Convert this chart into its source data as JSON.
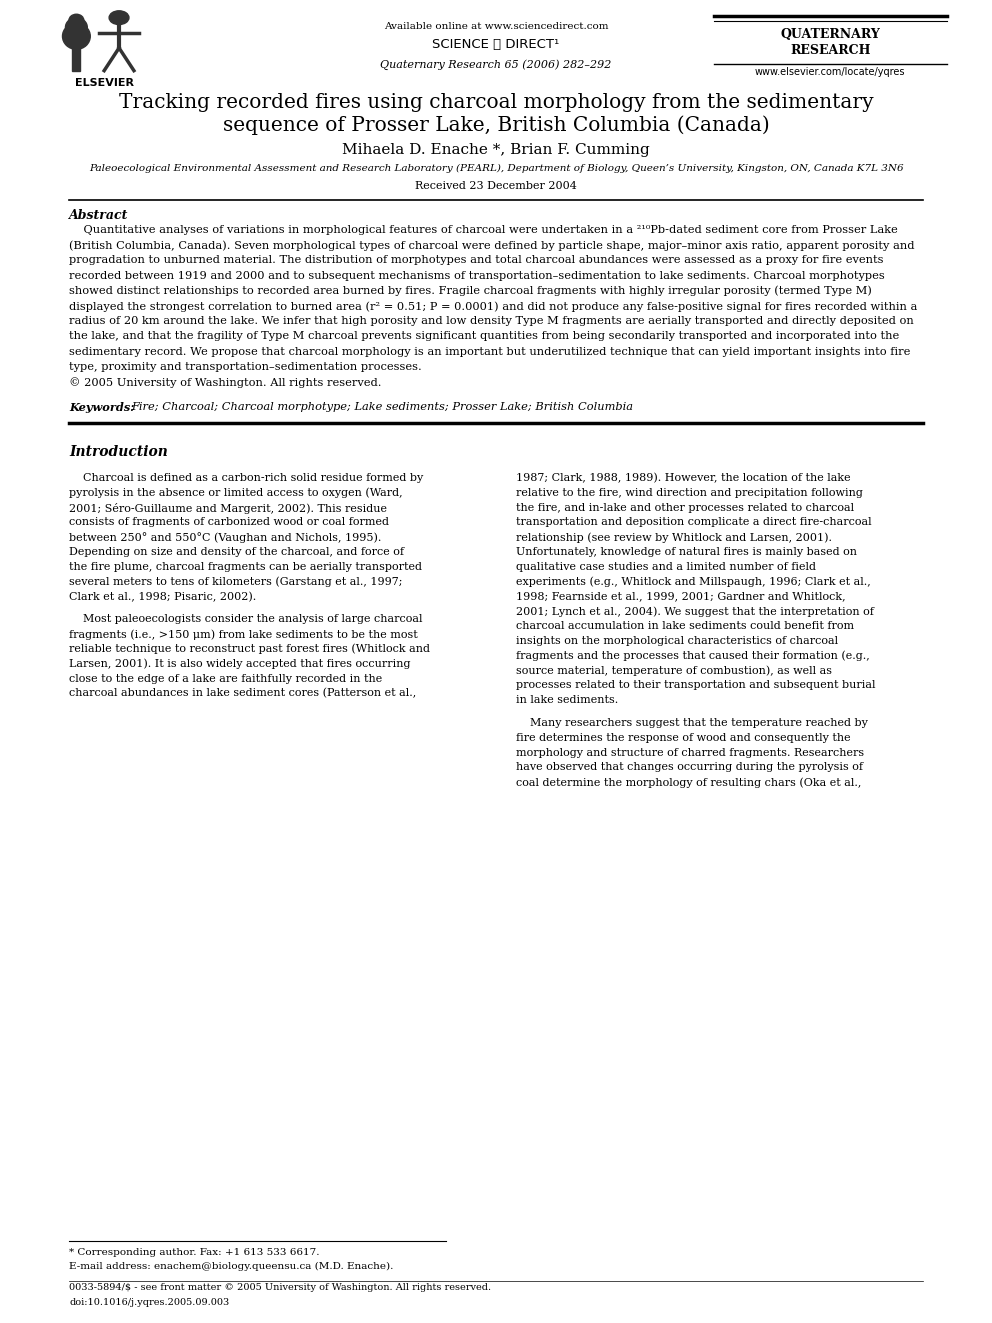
{
  "title_line1": "Tracking recorded fires using charcoal morphology from the sedimentary",
  "title_line2": "sequence of Prosser Lake, British Columbia (Canada)",
  "authors": "Mihaela D. Enache *, Brian F. Cumming",
  "affiliation": "Paleoecological Environmental Assessment and Research Laboratory (PEARL), Department of Biology, Queen’s University, Kingston, ON, Canada K7L 3N6",
  "received": "Received 23 December 2004",
  "header_center": "Available online at www.sciencedirect.com",
  "journal_info": "Quaternary Research 65 (2006) 282–292",
  "journal_url": "www.elsevier.com/locate/yqres",
  "elsevier": "ELSEVIER",
  "abstract_title": "Abstract",
  "copyright": "© 2005 University of Washington. All rights reserved.",
  "keywords_label": "Keywords:",
  "keywords": "Fire; Charcoal; Charcoal morphotype; Lake sediments; Prosser Lake; British Columbia",
  "section1_title": "Introduction",
  "footnote_star": "* Corresponding author. Fax: +1 613 533 6617.",
  "footnote_email": "E-mail address: enachem@biology.queensu.ca (M.D. Enache).",
  "footer_issn": "0033-5894/$ - see front matter © 2005 University of Washington. All rights reserved.",
  "footer_doi": "doi:10.1016/j.yqres.2005.09.003",
  "bg_color": "#ffffff",
  "text_color": "#000000",
  "link_color": "#0000cc",
  "abstract_lines": [
    "    Quantitative analyses of variations in morphological features of charcoal were undertaken in a ²¹⁰Pb-dated sediment core from Prosser Lake",
    "(British Columbia, Canada). Seven morphological types of charcoal were defined by particle shape, major–minor axis ratio, apparent porosity and",
    "progradation to unburned material. The distribution of morphotypes and total charcoal abundances were assessed as a proxy for fire events",
    "recorded between 1919 and 2000 and to subsequent mechanisms of transportation–sedimentation to lake sediments. Charcoal morphotypes",
    "showed distinct relationships to recorded area burned by fires. Fragile charcoal fragments with highly irregular porosity (termed Type M)",
    "displayed the strongest correlation to burned area (r² = 0.51; P = 0.0001) and did not produce any false-positive signal for fires recorded within a",
    "radius of 20 km around the lake. We infer that high porosity and low density Type M fragments are aerially transported and directly deposited on",
    "the lake, and that the fragility of Type M charcoal prevents significant quantities from being secondarily transported and incorporated into the",
    "sedimentary record. We propose that charcoal morphology is an important but underutilized technique that can yield important insights into fire",
    "type, proximity and transportation–sedimentation processes.",
    "© 2005 University of Washington. All rights reserved."
  ],
  "col1_p1_lines": [
    "    Charcoal is defined as a carbon-rich solid residue formed by",
    "pyrolysis in the absence or limited access to oxygen (Ward,",
    "2001; Séro-Guillaume and Margerit, 2002). This residue",
    "consists of fragments of carbonized wood or coal formed",
    "between 250° and 550°C (Vaughan and Nichols, 1995).",
    "Depending on size and density of the charcoal, and force of",
    "the fire plume, charcoal fragments can be aerially transported",
    "several meters to tens of kilometers (Garstang et al., 1997;",
    "Clark et al., 1998; Pisaric, 2002)."
  ],
  "col1_p2_lines": [
    "    Most paleoecologists consider the analysis of large charcoal",
    "fragments (i.e., >150 μm) from lake sediments to be the most",
    "reliable technique to reconstruct past forest fires (Whitlock and",
    "Larsen, 2001). It is also widely accepted that fires occurring",
    "close to the edge of a lake are faithfully recorded in the",
    "charcoal abundances in lake sediment cores (Patterson et al.,"
  ],
  "col2_p1_lines": [
    "1987; Clark, 1988, 1989). However, the location of the lake",
    "relative to the fire, wind direction and precipitation following",
    "the fire, and in-lake and other processes related to charcoal",
    "transportation and deposition complicate a direct fire-charcoal",
    "relationship (see review by Whitlock and Larsen, 2001).",
    "Unfortunately, knowledge of natural fires is mainly based on",
    "qualitative case studies and a limited number of field",
    "experiments (e.g., Whitlock and Millspaugh, 1996; Clark et al.,",
    "1998; Fearnside et al., 1999, 2001; Gardner and Whitlock,",
    "2001; Lynch et al., 2004). We suggest that the interpretation of",
    "charcoal accumulation in lake sediments could benefit from",
    "insights on the morphological characteristics of charcoal",
    "fragments and the processes that caused their formation (e.g.,",
    "source material, temperature of combustion), as well as",
    "processes related to their transportation and subsequent burial",
    "in lake sediments."
  ],
  "col2_p2_lines": [
    "    Many researchers suggest that the temperature reached by",
    "fire determines the response of wood and consequently the",
    "morphology and structure of charred fragments. Researchers",
    "have observed that changes occurring during the pyrolysis of",
    "coal determine the morphology of resulting chars (Oka et al.,"
  ]
}
